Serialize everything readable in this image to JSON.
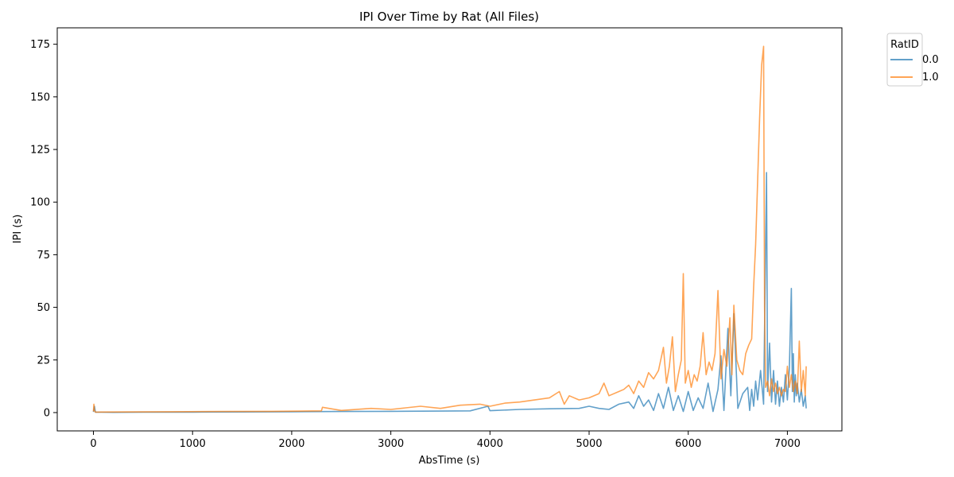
{
  "chart_data": {
    "type": "line",
    "title": "IPI Over Time by Rat (All Files)",
    "xlabel": "AbsTime (s)",
    "ylabel": "IPI (s)",
    "xlim": [
      -365,
      7550
    ],
    "ylim": [
      -8.7,
      182.8
    ],
    "xticks": [
      0,
      1000,
      2000,
      3000,
      4000,
      5000,
      6000,
      7000
    ],
    "yticks": [
      0,
      25,
      50,
      75,
      100,
      125,
      150,
      175
    ],
    "grid": false,
    "legend": {
      "title": "RatID",
      "position": "upper-right-outside"
    },
    "series": [
      {
        "name": "0.0",
        "color": "#1f77b4",
        "x": [
          0,
          10,
          20,
          200,
          500,
          1000,
          1500,
          2000,
          2500,
          3000,
          3500,
          3800,
          3980,
          4000,
          4050,
          4300,
          4600,
          4900,
          5000,
          5100,
          5200,
          5300,
          5400,
          5450,
          5500,
          5550,
          5600,
          5650,
          5700,
          5750,
          5800,
          5850,
          5900,
          5950,
          6000,
          6050,
          6100,
          6150,
          6200,
          6250,
          6300,
          6330,
          6360,
          6400,
          6430,
          6460,
          6500,
          6550,
          6600,
          6620,
          6640,
          6660,
          6680,
          6700,
          6730,
          6760,
          6790,
          6800,
          6820,
          6840,
          6860,
          6880,
          6900,
          6920,
          6940,
          6960,
          6980,
          7000,
          7020,
          7040,
          7050,
          7060,
          7070,
          7080,
          7090,
          7100,
          7120,
          7140,
          7160,
          7180,
          7190
        ],
        "values": [
          0.3,
          3,
          0.2,
          0.1,
          0.2,
          0.2,
          0.3,
          0.4,
          0.5,
          0.6,
          0.7,
          0.8,
          3,
          0.9,
          1,
          1.5,
          1.8,
          2,
          3,
          2,
          1.5,
          4,
          5,
          2,
          8,
          3,
          6,
          1,
          9,
          2,
          12,
          1,
          8,
          0.5,
          10,
          1,
          7,
          2,
          14,
          0.5,
          11,
          27,
          1,
          40,
          8,
          47,
          2,
          9,
          12,
          1,
          11,
          3,
          15,
          6,
          20,
          4,
          114,
          10,
          33,
          5,
          20,
          4,
          15,
          3,
          12,
          5,
          18,
          6,
          21,
          59,
          10,
          28,
          5,
          18,
          8,
          14,
          5,
          11,
          3,
          8,
          2
        ]
      },
      {
        "name": "1.0",
        "color": "#ff7f0e",
        "x": [
          0,
          5,
          10,
          20,
          300,
          800,
          1300,
          1800,
          2300,
          2310,
          2500,
          2800,
          3000,
          3300,
          3500,
          3700,
          3900,
          4000,
          4150,
          4300,
          4450,
          4600,
          4700,
          4750,
          4800,
          4900,
          5000,
          5100,
          5150,
          5200,
          5300,
          5350,
          5400,
          5450,
          5500,
          5550,
          5600,
          5650,
          5700,
          5750,
          5780,
          5810,
          5840,
          5870,
          5900,
          5930,
          5950,
          5970,
          6000,
          6030,
          6060,
          6090,
          6120,
          6150,
          6180,
          6210,
          6240,
          6270,
          6300,
          6330,
          6360,
          6390,
          6420,
          6440,
          6460,
          6490,
          6520,
          6550,
          6580,
          6610,
          6640,
          6660,
          6680,
          6700,
          6720,
          6740,
          6760,
          6770,
          6780,
          6800,
          6820,
          6840,
          6860,
          6880,
          6900,
          6920,
          6940,
          6960,
          6980,
          7000,
          7020,
          7040,
          7060,
          7080,
          7100,
          7120,
          7140,
          7160,
          7180,
          7190
        ],
        "values": [
          0.5,
          4,
          1,
          0.2,
          0.3,
          0.4,
          0.5,
          0.6,
          0.8,
          2.5,
          1,
          2,
          1.5,
          3,
          2,
          3.5,
          4,
          3,
          4.5,
          5,
          6,
          7,
          10,
          4,
          8,
          6,
          7,
          9,
          14,
          8,
          10,
          11,
          13,
          9,
          15,
          12,
          19,
          16,
          20,
          31,
          14,
          22,
          36,
          10,
          18,
          25,
          66,
          14,
          20,
          12,
          18,
          15,
          22,
          38,
          18,
          24,
          20,
          28,
          58,
          16,
          30,
          22,
          45,
          18,
          51,
          25,
          20,
          18,
          28,
          32,
          35,
          60,
          80,
          110,
          140,
          165,
          174,
          50,
          12,
          15,
          8,
          16,
          10,
          14,
          9,
          12,
          8,
          11,
          10,
          22,
          12,
          18,
          10,
          15,
          9,
          34,
          10,
          20,
          8,
          22
        ]
      }
    ]
  }
}
